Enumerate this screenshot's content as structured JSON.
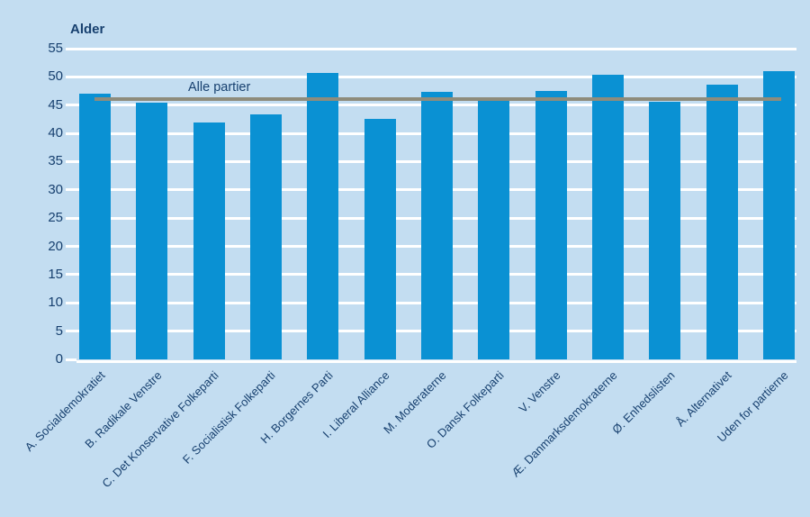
{
  "chart_data": {
    "type": "bar",
    "title": "Alder",
    "xlabel": "",
    "ylabel": "Alder",
    "categories": [
      "A. Socialdemokratiet",
      "B. Radikale Venstre",
      "C. Det Konservative Folkeparti",
      "F. Socialistisk Folkeparti",
      "H. Borgernes Parti",
      "I. Liberal Alliance",
      "M. Moderaterne",
      "O. Dansk Folkeparti",
      "V. Venstre",
      "Æ. Danmarksdemokraterne",
      "Ø. Enhedslisten",
      "Å. Alternativet",
      "Uden for partierne"
    ],
    "values": [
      47.1,
      45.5,
      41.9,
      43.3,
      50.7,
      42.5,
      47.3,
      46.4,
      47.5,
      50.4,
      45.6,
      48.6,
      51.0
    ],
    "reference_line": {
      "label": "Alle partier",
      "value": 46.0
    },
    "ylim": [
      0,
      55
    ],
    "ytick_step": 5,
    "yticks": [
      "0",
      "5",
      "10",
      "15",
      "20",
      "25",
      "30",
      "35",
      "40",
      "45",
      "50",
      "55"
    ],
    "grid": true,
    "legend_position": "none",
    "colors": {
      "bar": "#0a91d3",
      "background": "#c3ddf1",
      "gridline": "#ffffff",
      "reference_line": "#8e8c7c",
      "text": "#17406f"
    }
  }
}
